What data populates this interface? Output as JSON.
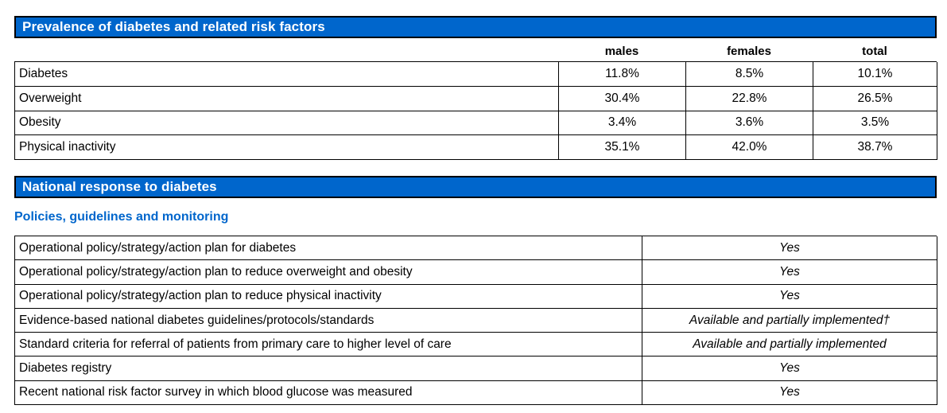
{
  "colors": {
    "section_bar_bg": "#0066cc",
    "section_bar_text": "#ffffff",
    "section_bar_border": "#000000",
    "subheading_text": "#0066cc",
    "table_border": "#000000",
    "body_text": "#000000",
    "page_bg": "#ffffff"
  },
  "prevalence_section": {
    "title": "Prevalence of diabetes and related risk factors",
    "table": {
      "column_headers": [
        "males",
        "females",
        "total"
      ],
      "rows": [
        {
          "label": "Diabetes",
          "males": "11.8%",
          "females": "8.5%",
          "total": "10.1%"
        },
        {
          "label": "Overweight",
          "males": "30.4%",
          "females": "22.8%",
          "total": "26.5%"
        },
        {
          "label": "Obesity",
          "males": "3.4%",
          "females": "3.6%",
          "total": "3.5%"
        },
        {
          "label": "Physical inactivity",
          "males": "35.1%",
          "females": "42.0%",
          "total": "38.7%"
        }
      ]
    }
  },
  "response_section": {
    "title": "National response to diabetes",
    "subheading": "Policies, guidelines and monitoring",
    "table": {
      "rows": [
        {
          "label": "Operational policy/strategy/action plan for diabetes",
          "value": "Yes"
        },
        {
          "label": "Operational policy/strategy/action plan to reduce overweight and obesity",
          "value": "Yes"
        },
        {
          "label": "Operational policy/strategy/action plan to reduce physical inactivity",
          "value": "Yes"
        },
        {
          "label": "Evidence-based national diabetes guidelines/protocols/standards",
          "value": "Available and partially implemented†"
        },
        {
          "label": "Standard criteria for referral of patients from primary care to higher level of care",
          "value": "Available and partially implemented"
        },
        {
          "label": "Diabetes registry",
          "value": "Yes"
        },
        {
          "label": "Recent national risk factor survey in which blood glucose was measured",
          "value": "Yes"
        }
      ]
    }
  }
}
